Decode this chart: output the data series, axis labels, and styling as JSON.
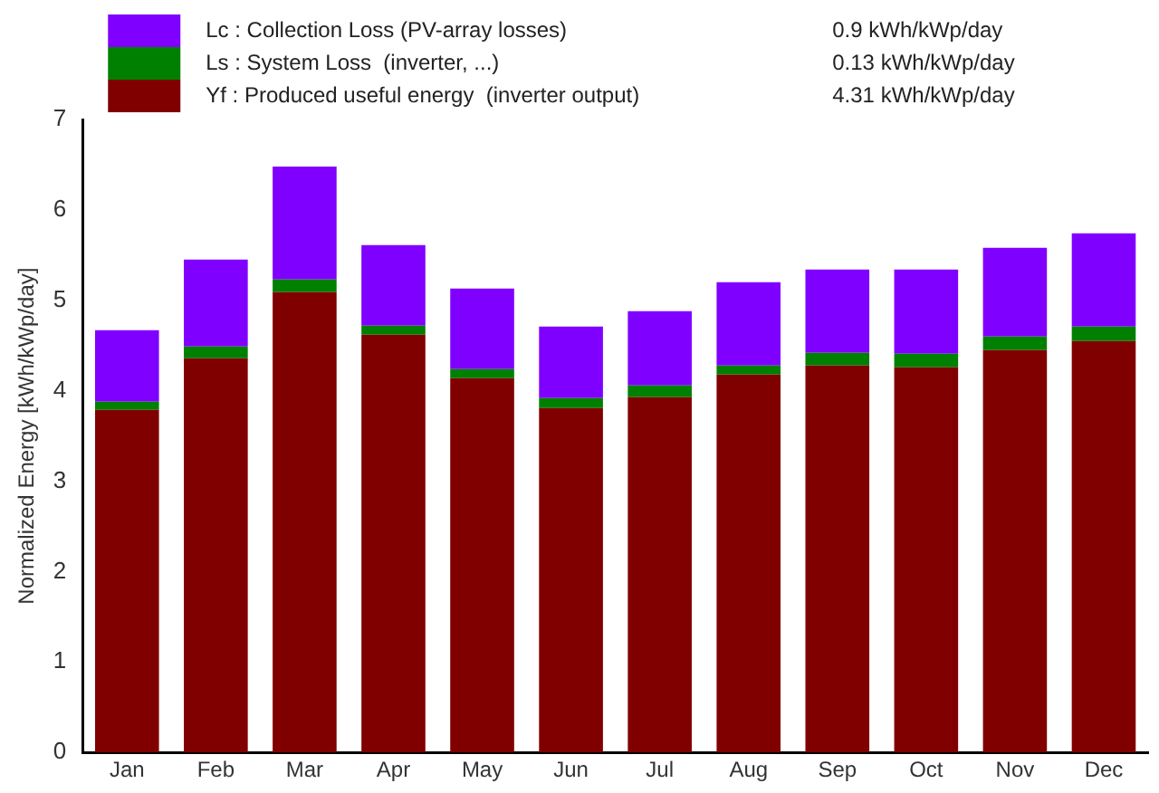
{
  "chart_data": {
    "type": "bar",
    "stacked": true,
    "ylabel": "Normalized Energy [kWh/kWp/day]",
    "categories": [
      "Jan",
      "Feb",
      "Mar",
      "Apr",
      "May",
      "Jun",
      "Jul",
      "Aug",
      "Sep",
      "Oct",
      "Nov",
      "Dec"
    ],
    "series": [
      {
        "name": "Yf : Produced useful energy  (inverter output)",
        "color": "#800000",
        "values": [
          3.79,
          4.36,
          5.09,
          4.62,
          4.14,
          3.81,
          3.93,
          4.18,
          4.28,
          4.26,
          4.45,
          4.55
        ]
      },
      {
        "name": "Ls : System Loss  (inverter, ...)",
        "color": "#008000",
        "values": [
          0.09,
          0.13,
          0.14,
          0.1,
          0.1,
          0.11,
          0.13,
          0.1,
          0.14,
          0.15,
          0.15,
          0.16
        ]
      },
      {
        "name": "Lc : Collection Loss (PV-array losses)",
        "color": "#8000ff",
        "values": [
          0.79,
          0.96,
          1.25,
          0.89,
          0.89,
          0.79,
          0.82,
          0.92,
          0.92,
          0.93,
          0.98,
          1.03
        ]
      }
    ],
    "annotations": [
      "4.31 kWh/kWp/day",
      "0.13 kWh/kWp/day",
      "0.9 kWh/kWp/day"
    ],
    "ylim": [
      0,
      7
    ],
    "yticks": [
      0,
      1,
      2,
      3,
      4,
      5,
      6,
      7
    ],
    "grid": false,
    "legend": "top left"
  }
}
